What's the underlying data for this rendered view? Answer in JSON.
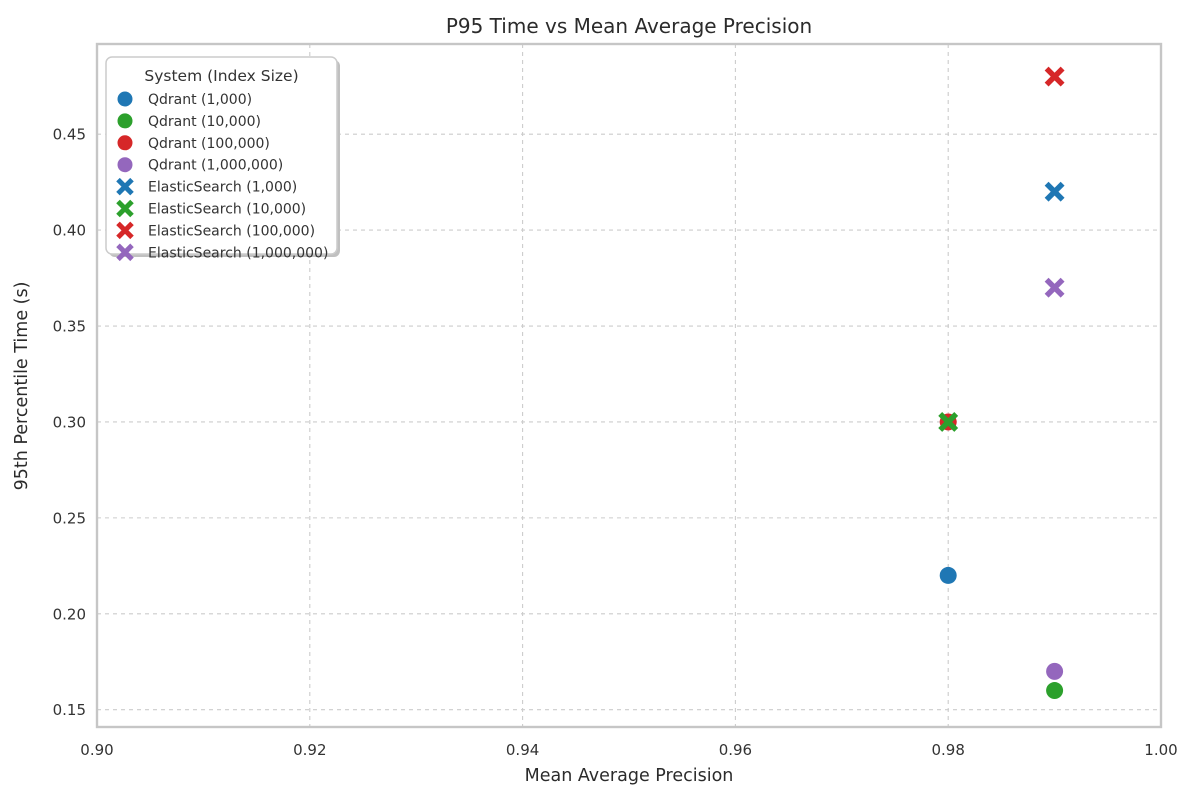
{
  "chart_data": {
    "type": "scatter",
    "title": "P95 Time vs Mean Average Precision",
    "xlabel": "Mean Average Precision",
    "ylabel": "95th Percentile Time (s)",
    "xlim": [
      0.9,
      1.0
    ],
    "ylim": [
      0.141,
      0.497
    ],
    "xticks": [
      0.9,
      0.92,
      0.94,
      0.96,
      0.98,
      1.0
    ],
    "xtick_labels": [
      "0.90",
      "0.92",
      "0.94",
      "0.96",
      "0.98",
      "1.00"
    ],
    "yticks": [
      0.15,
      0.2,
      0.25,
      0.3,
      0.35,
      0.4,
      0.45
    ],
    "ytick_labels": [
      "0.15",
      "0.20",
      "0.25",
      "0.30",
      "0.35",
      "0.40",
      "0.45"
    ],
    "grid": true,
    "grid_style": "dashed",
    "legend": {
      "title": "System (Index Size)",
      "position": "upper left"
    },
    "series": [
      {
        "name": "Qdrant (1,000)",
        "marker": "circle",
        "color": "#1f77b4",
        "points": [
          {
            "x": 0.98,
            "y": 0.22
          }
        ]
      },
      {
        "name": "Qdrant (10,000)",
        "marker": "circle",
        "color": "#2ca02c",
        "points": [
          {
            "x": 0.99,
            "y": 0.16
          }
        ]
      },
      {
        "name": "Qdrant (100,000)",
        "marker": "circle",
        "color": "#d62728",
        "points": [
          {
            "x": 0.98,
            "y": 0.3
          }
        ]
      },
      {
        "name": "Qdrant (1,000,000)",
        "marker": "circle",
        "color": "#9467bd",
        "points": [
          {
            "x": 0.99,
            "y": 0.17
          }
        ]
      },
      {
        "name": "ElasticSearch (1,000)",
        "marker": "x",
        "color": "#1f77b4",
        "points": [
          {
            "x": 0.99,
            "y": 0.42
          }
        ]
      },
      {
        "name": "ElasticSearch (10,000)",
        "marker": "x",
        "color": "#2ca02c",
        "points": [
          {
            "x": 0.98,
            "y": 0.3
          }
        ]
      },
      {
        "name": "ElasticSearch (100,000)",
        "marker": "x",
        "color": "#d62728",
        "points": [
          {
            "x": 0.99,
            "y": 0.48
          }
        ]
      },
      {
        "name": "ElasticSearch (1,000,000)",
        "marker": "x",
        "color": "#9467bd",
        "points": [
          {
            "x": 0.99,
            "y": 0.37
          }
        ]
      }
    ],
    "colors": {
      "grid": "#cccccc",
      "spine": "#c6c6c6",
      "title_text": "#2b2b2b",
      "label_text": "#2b2b2b",
      "tick_text": "#333333",
      "legend_border": "#cccccc",
      "legend_shadow": "#c0c0c0",
      "legend_bg": "#ffffff",
      "background": "#ffffff"
    }
  }
}
